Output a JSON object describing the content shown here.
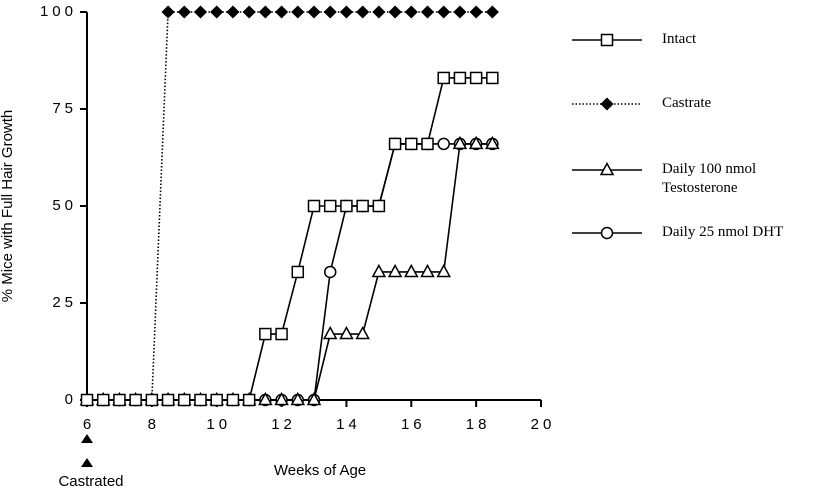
{
  "chart_data": {
    "type": "line",
    "y_label": "% Mice with Full Hair Growth",
    "x_label": "Weeks of Age",
    "annotation": "Castrated",
    "xlim": [
      6,
      20
    ],
    "xticks": [
      6,
      8,
      10,
      12,
      14,
      16,
      18,
      20
    ],
    "ylim": [
      0,
      100
    ],
    "yticks": [
      0,
      25,
      50,
      75,
      100
    ],
    "series": [
      {
        "name": "Intact",
        "color": "#000000",
        "marker": "square",
        "dash": "solid",
        "x": [
          6,
          6.5,
          7,
          7.5,
          8,
          8.5,
          9,
          9.5,
          10,
          10.5,
          11,
          11.5,
          12,
          12.5,
          13,
          13.5,
          14,
          14.5,
          15,
          15.5,
          16,
          16.5,
          17,
          17.5,
          18,
          18.5
        ],
        "values": [
          0,
          0,
          0,
          0,
          0,
          0,
          0,
          0,
          0,
          0,
          0,
          17,
          17,
          33,
          50,
          50,
          50,
          50,
          50,
          66,
          66,
          66,
          83,
          83,
          83,
          83
        ]
      },
      {
        "name": "Castrate",
        "color": "#000000",
        "marker": "diamond",
        "dash": "dotted",
        "x": [
          6,
          6.5,
          7,
          7.5,
          8,
          8.5,
          9,
          9.5,
          10,
          10.5,
          11,
          11.5,
          12,
          12.5,
          13,
          13.5,
          14,
          14.5,
          15,
          15.5,
          16,
          16.5,
          17,
          17.5,
          18,
          18.5
        ],
        "values": [
          0,
          0,
          0,
          0,
          0,
          100,
          100,
          100,
          100,
          100,
          100,
          100,
          100,
          100,
          100,
          100,
          100,
          100,
          100,
          100,
          100,
          100,
          100,
          100,
          100,
          100
        ]
      },
      {
        "name": "Daily 100 nmol\nTestosterone",
        "color": "#000000",
        "marker": "triangle",
        "dash": "solid",
        "x": [
          6,
          6.5,
          7,
          7.5,
          8,
          8.5,
          9,
          9.5,
          10,
          10.5,
          11,
          11.5,
          12,
          12.5,
          13,
          13.5,
          14,
          14.5,
          15,
          15.5,
          16,
          16.5,
          17,
          17.5,
          18,
          18.5
        ],
        "values": [
          0,
          0,
          0,
          0,
          0,
          0,
          0,
          0,
          0,
          0,
          0,
          0,
          0,
          0,
          0,
          17,
          17,
          17,
          33,
          33,
          33,
          33,
          33,
          66,
          66,
          66
        ]
      },
      {
        "name": "Daily 25 nmol DHT",
        "color": "#000000",
        "marker": "circle",
        "dash": "solid",
        "x": [
          6,
          6.5,
          7,
          7.5,
          8,
          8.5,
          9,
          9.5,
          10,
          10.5,
          11,
          11.5,
          12,
          12.5,
          13,
          13.5,
          14,
          14.5,
          15,
          15.5,
          16,
          16.5,
          17,
          17.5,
          18,
          18.5
        ],
        "values": [
          0,
          0,
          0,
          0,
          0,
          0,
          0,
          0,
          0,
          0,
          0,
          0,
          0,
          0,
          0,
          33,
          50,
          50,
          50,
          66,
          66,
          66,
          66,
          66,
          66,
          66
        ]
      }
    ]
  }
}
